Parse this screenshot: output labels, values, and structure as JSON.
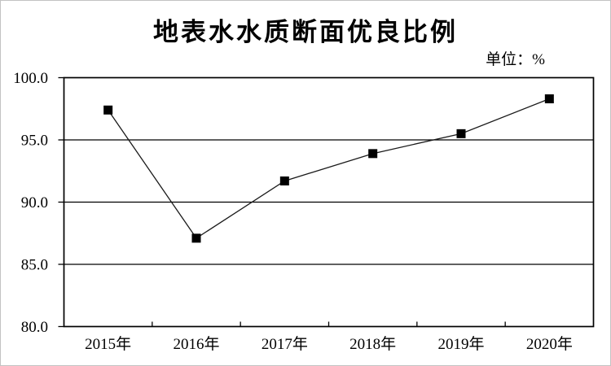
{
  "chart_data": {
    "type": "line",
    "title": "地表水水质断面优良比例",
    "unit_label": "单位：%",
    "categories": [
      "2015年",
      "2016年",
      "2017年",
      "2018年",
      "2019年",
      "2020年"
    ],
    "series": [
      {
        "name": "地表水水质断面优良比例",
        "values": [
          97.4,
          87.1,
          91.7,
          93.9,
          95.5,
          98.3
        ]
      }
    ],
    "ylim": [
      80.0,
      100.0
    ],
    "yticks": [
      100.0,
      95.0,
      90.0,
      85.0,
      80.0
    ],
    "ytick_labels": [
      "100.0",
      "95.0",
      "90.0",
      "85.0",
      "80.0"
    ],
    "xlabel": "",
    "ylabel": "",
    "grid": "horizontal-major",
    "legend": "none",
    "marker": "filled-square",
    "colors": {
      "line": "#1a1a1a",
      "marker": "#000000",
      "axis": "#000000",
      "text": "#000000",
      "background": "#ffffff",
      "image_border": "#c3c3c3"
    }
  }
}
